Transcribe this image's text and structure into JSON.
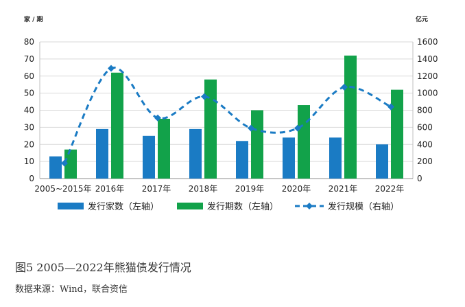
{
  "chart_data": {
    "type": "bar",
    "left_axis_unit": "家 / 期",
    "right_axis_unit": "亿元",
    "categories": [
      "2005~2015年",
      "2016年",
      "2017年",
      "2018年",
      "2019年",
      "2020年",
      "2021年",
      "2022年"
    ],
    "ylim_left": [
      0,
      80
    ],
    "left_ticks": [
      0,
      10,
      20,
      30,
      40,
      50,
      60,
      70,
      80
    ],
    "ylim_right": [
      0,
      1600
    ],
    "right_ticks": [
      0,
      200,
      400,
      600,
      800,
      1000,
      1200,
      1400,
      1600
    ],
    "grid": true,
    "legend_position": "bottom",
    "series": [
      {
        "name": "发行家数（左轴）",
        "type": "bar",
        "axis": "left",
        "color": "#1a7bc4",
        "values": [
          13,
          29,
          25,
          29,
          22,
          24,
          24,
          20
        ]
      },
      {
        "name": "发行期数（左轴）",
        "type": "bar",
        "axis": "left",
        "color": "#12a24a",
        "values": [
          17,
          62,
          35,
          58,
          40,
          43,
          72,
          52
        ]
      },
      {
        "name": "发行规模（右轴）",
        "type": "line",
        "axis": "right",
        "color": "#1a7bc4",
        "style": "dashed",
        "marker": "diamond",
        "values": [
          180,
          1290,
          710,
          960,
          590,
          590,
          1070,
          840
        ]
      }
    ]
  },
  "caption": "图5 2005—2022年熊猫债发行情况",
  "source": "数据来源：Wind，联合资信"
}
